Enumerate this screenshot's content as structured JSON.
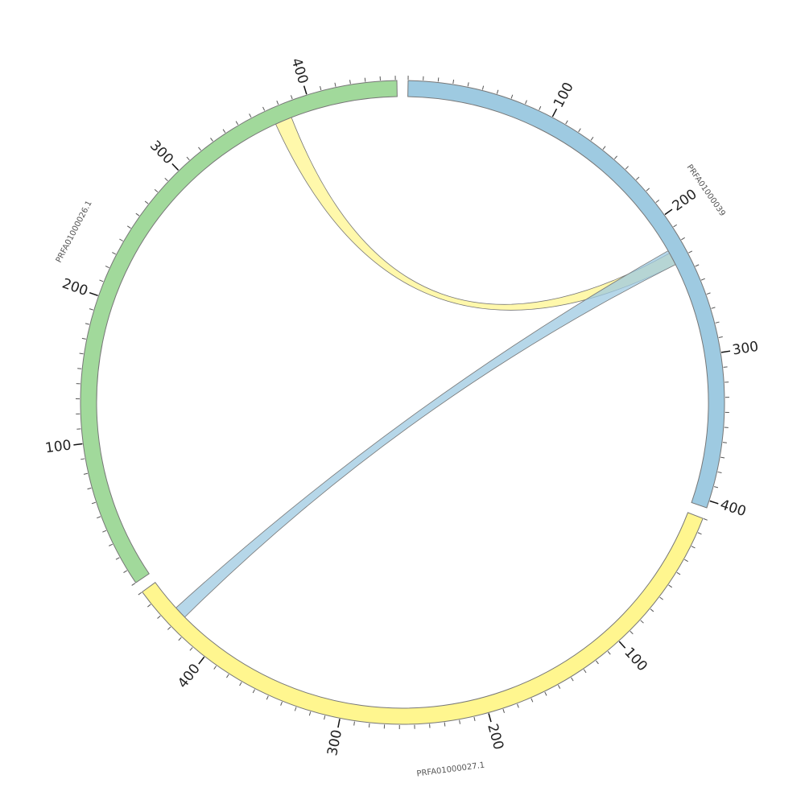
{
  "chart_data": {
    "type": "chord",
    "segments": [
      {
        "name": "PRFA01000039",
        "length": 405,
        "color": "#9ecae1",
        "ticks": [
          100,
          200,
          300,
          400
        ]
      },
      {
        "name": "PRFA01000027.1",
        "length": 460,
        "color": "#fff68f",
        "ticks": [
          100,
          200,
          300,
          400
        ]
      },
      {
        "name": "PRFA01000026.1",
        "length": 461,
        "color": "#a1d99b",
        "ticks": [
          100,
          200,
          300,
          400
        ]
      }
    ],
    "minor_tick_step": 10,
    "links": [
      {
        "source": "PRFA01000026.1",
        "source_range": [
          373,
          385
        ],
        "target": "PRFA01000039",
        "target_range": [
          224,
          233
        ],
        "color": "#fff68f"
      },
      {
        "source": "PRFA01000039",
        "source_range": [
          222,
          233
        ],
        "target": "PRFA01000027.1",
        "target_range": [
          428,
          437
        ],
        "color": "#9ecae1"
      }
    ]
  }
}
